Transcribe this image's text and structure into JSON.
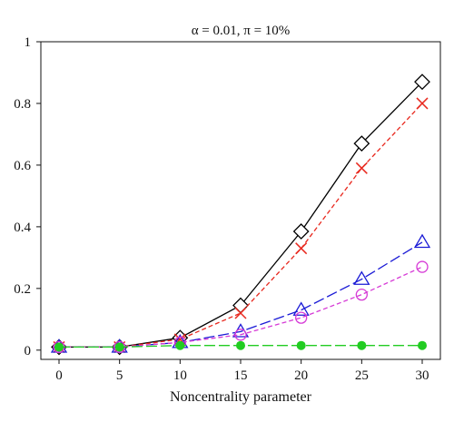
{
  "chart_data": {
    "type": "line",
    "title": "α = 0.01, π = 10%",
    "xlabel": "Noncentrality parameter",
    "ylabel": "",
    "x": [
      0,
      5,
      10,
      15,
      20,
      25,
      30
    ],
    "xlim": [
      -1.5,
      31.5
    ],
    "ylim": [
      -0.03,
      1.0
    ],
    "xticks": [
      "0",
      "5",
      "10",
      "15",
      "20",
      "25",
      "30"
    ],
    "yticks": [
      "0",
      "0.2",
      "0.4",
      "0.6",
      "0.8",
      "1"
    ],
    "grid": false,
    "legend": "none",
    "series": [
      {
        "marker": "diamond",
        "color": "#000000",
        "dash": "solid",
        "values": [
          0.01,
          0.01,
          0.04,
          0.145,
          0.385,
          0.67,
          0.87
        ]
      },
      {
        "marker": "cross",
        "color": "#e8281e",
        "dash": "short-dash",
        "values": [
          0.01,
          0.01,
          0.035,
          0.12,
          0.33,
          0.59,
          0.8
        ]
      },
      {
        "marker": "triangle",
        "color": "#1a1ad6",
        "dash": "long-dash",
        "values": [
          0.01,
          0.01,
          0.025,
          0.06,
          0.13,
          0.23,
          0.35
        ]
      },
      {
        "marker": "circle-open",
        "color": "#d63ad6",
        "dash": "short-dash",
        "values": [
          0.01,
          0.01,
          0.025,
          0.05,
          0.105,
          0.18,
          0.27
        ]
      },
      {
        "marker": "circle-filled",
        "color": "#22cc22",
        "dash": "long-dash",
        "values": [
          0.01,
          0.01,
          0.015,
          0.015,
          0.015,
          0.015,
          0.015
        ]
      }
    ]
  }
}
